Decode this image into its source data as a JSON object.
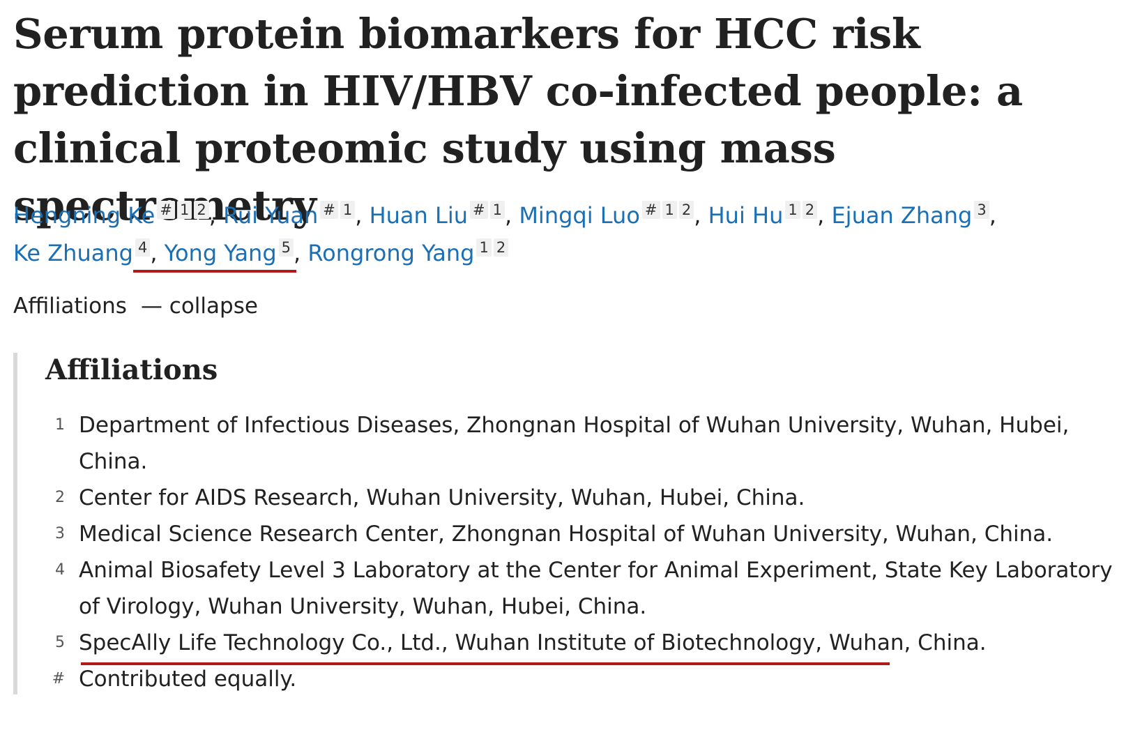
{
  "article": {
    "title": "Serum protein biomarkers for HCC risk prediction in HIV/HBV co-infected people: a clinical proteomic study using mass spectrometry"
  },
  "authors": [
    {
      "name": "Hengning Ke",
      "affs": [
        "#",
        "1",
        "2"
      ],
      "sep": ","
    },
    {
      "name": "Rui Yuan",
      "affs": [
        "#",
        "1"
      ],
      "sep": ","
    },
    {
      "name": "Huan Liu",
      "affs": [
        "#",
        "1"
      ],
      "sep": ","
    },
    {
      "name": "Mingqi Luo",
      "affs": [
        "#",
        "1",
        "2"
      ],
      "sep": ","
    },
    {
      "name": "Hui Hu",
      "affs": [
        "1",
        "2"
      ],
      "sep": ","
    },
    {
      "name": "Ejuan Zhang",
      "affs": [
        "3"
      ],
      "sep": ","
    },
    {
      "name": "Ke Zhuang",
      "affs": [
        "4"
      ],
      "sep": ","
    },
    {
      "name": "Yong Yang",
      "affs": [
        "5"
      ],
      "sep": ","
    },
    {
      "name": "Rongrong Yang",
      "affs": [
        "1",
        "2"
      ],
      "sep": ""
    }
  ],
  "affiliations_toggle": {
    "label": "Affiliations",
    "action": "— collapse"
  },
  "affiliations": {
    "heading": "Affiliations",
    "items": [
      {
        "num": "1",
        "text": "Department of Infectious Diseases, Zhongnan Hospital of Wuhan University, Wuhan, Hubei, China."
      },
      {
        "num": "2",
        "text": "Center for AIDS Research, Wuhan University, Wuhan, Hubei, China."
      },
      {
        "num": "3",
        "text": "Medical Science Research Center, Zhongnan Hospital of Wuhan University, Wuhan, China."
      },
      {
        "num": "4",
        "text": "Animal Biosafety Level 3 Laboratory at the Center for Animal Experiment, State Key Laboratory of Virology, Wuhan University, Wuhan, Hubei, China."
      },
      {
        "num": "5",
        "text": "SpecAlly Life Technology Co., Ltd., Wuhan Institute of Biotechnology, Wuhan, China."
      },
      {
        "num": "#",
        "text": "Contributed equally."
      }
    ]
  },
  "colors": {
    "link": "#1a6fb5",
    "text": "#212121",
    "highlight_underline": "#b31b1b",
    "panel_border": "#d9d9d9",
    "tag_bg": "#f0f0f0"
  }
}
